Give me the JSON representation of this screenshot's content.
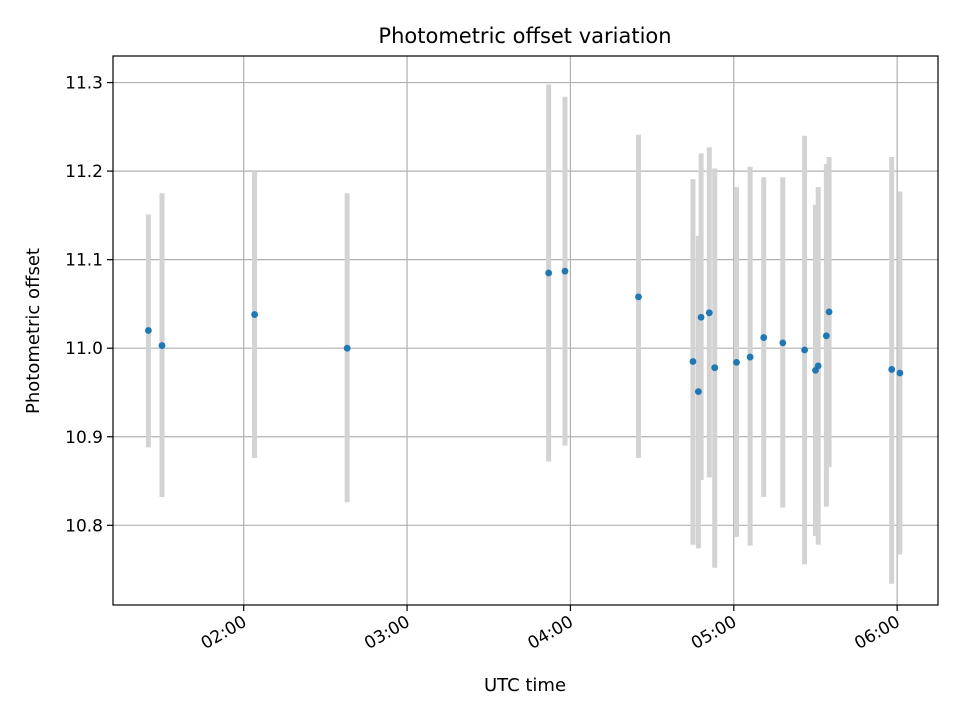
{
  "chart_data": {
    "type": "scatter",
    "title": "Photometric offset variation",
    "xlabel": "UTC time",
    "ylabel": "Photometric offset",
    "x_is_time": true,
    "xlim": [
      "01:12",
      "06:15"
    ],
    "ylim": [
      10.71,
      11.33
    ],
    "x_ticks": [
      "02:00",
      "03:00",
      "04:00",
      "05:00",
      "06:00"
    ],
    "y_ticks": [
      "10.8",
      "10.9",
      "11.0",
      "11.1",
      "11.2",
      "11.3"
    ],
    "grid": true,
    "colors": {
      "point": "#1f77b4",
      "errorbar": "#d3d3d3",
      "grid": "#b0b0b0"
    },
    "series": [
      {
        "points": [
          {
            "x": "01:25",
            "y": 11.02,
            "yerr_low": 10.888,
            "yerr_high": 11.151
          },
          {
            "x": "01:30",
            "y": 11.003,
            "yerr_low": 10.832,
            "yerr_high": 11.175
          },
          {
            "x": "02:04",
            "y": 11.038,
            "yerr_low": 10.876,
            "yerr_high": 11.2
          },
          {
            "x": "02:38",
            "y": 11.0,
            "yerr_low": 10.826,
            "yerr_high": 11.175
          },
          {
            "x": "03:52",
            "y": 11.085,
            "yerr_low": 10.872,
            "yerr_high": 11.298
          },
          {
            "x": "03:58",
            "y": 11.087,
            "yerr_low": 10.89,
            "yerr_high": 11.284
          },
          {
            "x": "04:25",
            "y": 11.058,
            "yerr_low": 10.876,
            "yerr_high": 11.241
          },
          {
            "x": "04:45",
            "y": 10.985,
            "yerr_low": 10.778,
            "yerr_high": 11.191
          },
          {
            "x": "04:47",
            "y": 10.951,
            "yerr_low": 10.774,
            "yerr_high": 11.127
          },
          {
            "x": "04:48",
            "y": 11.035,
            "yerr_low": 10.851,
            "yerr_high": 11.22
          },
          {
            "x": "04:51",
            "y": 11.04,
            "yerr_low": 10.854,
            "yerr_high": 11.227
          },
          {
            "x": "04:53",
            "y": 10.978,
            "yerr_low": 10.752,
            "yerr_high": 11.203
          },
          {
            "x": "05:01",
            "y": 10.984,
            "yerr_low": 10.787,
            "yerr_high": 11.182
          },
          {
            "x": "05:06",
            "y": 10.99,
            "yerr_low": 10.777,
            "yerr_high": 11.205
          },
          {
            "x": "05:11",
            "y": 11.012,
            "yerr_low": 10.832,
            "yerr_high": 11.193
          },
          {
            "x": "05:18",
            "y": 11.006,
            "yerr_low": 10.82,
            "yerr_high": 11.193
          },
          {
            "x": "05:26",
            "y": 10.998,
            "yerr_low": 10.756,
            "yerr_high": 11.24
          },
          {
            "x": "05:30",
            "y": 10.975,
            "yerr_low": 10.788,
            "yerr_high": 11.162
          },
          {
            "x": "05:31",
            "y": 10.98,
            "yerr_low": 10.778,
            "yerr_high": 11.182
          },
          {
            "x": "05:34",
            "y": 11.014,
            "yerr_low": 10.821,
            "yerr_high": 11.208
          },
          {
            "x": "05:35",
            "y": 11.041,
            "yerr_low": 10.866,
            "yerr_high": 11.216
          },
          {
            "x": "05:58",
            "y": 10.976,
            "yerr_low": 10.734,
            "yerr_high": 11.216
          },
          {
            "x": "06:01",
            "y": 10.972,
            "yerr_low": 10.767,
            "yerr_high": 11.177
          }
        ]
      }
    ]
  }
}
